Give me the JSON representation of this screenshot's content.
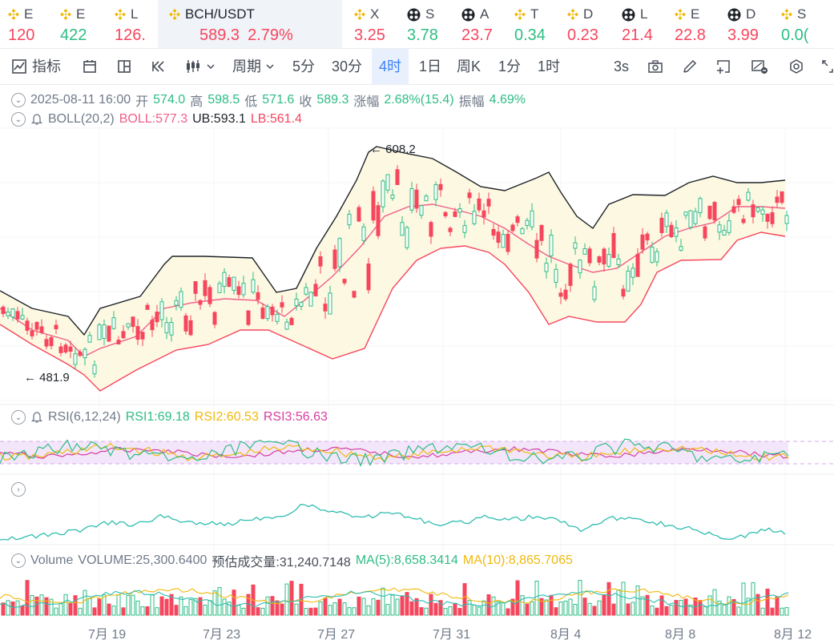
{
  "tickers": [
    {
      "label": "E",
      "value": "120",
      "dir": "down",
      "icon": "bnb-icon"
    },
    {
      "label": "E",
      "value": "422",
      "dir": "up",
      "icon": "bnb-icon"
    },
    {
      "label": "L",
      "value": "126.",
      "dir": "down",
      "icon": "bnb-icon"
    },
    {
      "label": "BCH/USDT",
      "value": "589.3",
      "change": "2.79%",
      "dir": "down",
      "icon": "bnb-icon"
    },
    {
      "label": "X",
      "value": "3.25",
      "dir": "down",
      "icon": "bnb-icon"
    },
    {
      "label": "S",
      "value": "3.78",
      "dir": "up",
      "icon": "gate-icon"
    },
    {
      "label": "A",
      "value": "23.7",
      "dir": "down",
      "icon": "gate-icon"
    },
    {
      "label": "T",
      "value": "0.34",
      "dir": "up",
      "icon": "bnb-icon"
    },
    {
      "label": "D",
      "value": "0.23",
      "dir": "down",
      "icon": "bnb-icon"
    },
    {
      "label": "L",
      "value": "21.4",
      "dir": "down",
      "icon": "gate-icon"
    },
    {
      "label": "E",
      "value": "22.8",
      "dir": "down",
      "icon": "bnb-icon"
    },
    {
      "label": "D",
      "value": "3.99",
      "dir": "down",
      "icon": "gate-icon"
    },
    {
      "label": "S",
      "value": "0.0(",
      "dir": "up",
      "icon": "bnb-icon"
    }
  ],
  "toolbar": {
    "indicators": "指标",
    "period": "周期",
    "intervals": [
      "5分",
      "30分",
      "4时",
      "1日",
      "周K",
      "1分",
      "1时"
    ],
    "active_interval": "4时",
    "refresh": "3s"
  },
  "ohlc": {
    "date": "2025-08-11 16:00",
    "open_label": "开",
    "open": "574.0",
    "high_label": "高",
    "high": "598.5",
    "low_label": "低",
    "low": "571.6",
    "close_label": "收",
    "close": "589.3",
    "change_label": "涨幅",
    "change": "2.68%(15.4)",
    "amp_label": "振幅",
    "amp": "4.69%"
  },
  "boll": {
    "name": "BOLL(20,2)",
    "mid": "BOLL:577.3",
    "ub": "UB:593.1",
    "lb": "LB:561.4"
  },
  "rsi": {
    "name": "RSI(6,12,24)",
    "rsi1": "RSI1:69.18",
    "rsi2": "RSI2:60.53",
    "rsi3": "RSI3:56.63"
  },
  "volume": {
    "name": "Volume",
    "vol": "VOLUME:25,300.6400",
    "est": "预估成交量:31,240.7148",
    "ma5": "MA(5):8,658.3414",
    "ma10": "MA(10):8,865.7065"
  },
  "price_high_tag": "608.2",
  "price_low_tag": "481.9",
  "xaxis": [
    "7月 19",
    "7月 23",
    "7月 27",
    "7月 31",
    "8月 4",
    "8月 8",
    "8月 12"
  ],
  "colors": {
    "up": "#2ebd85",
    "down": "#f6465d",
    "boll_mid": "#f0608a",
    "bands": "#1e2329",
    "fill": "#fdf8e1",
    "accent": "#3b82f6",
    "rsi1": "#2ebd85",
    "rsi2": "#f0b90b",
    "rsi3": "#d63fa0"
  }
}
